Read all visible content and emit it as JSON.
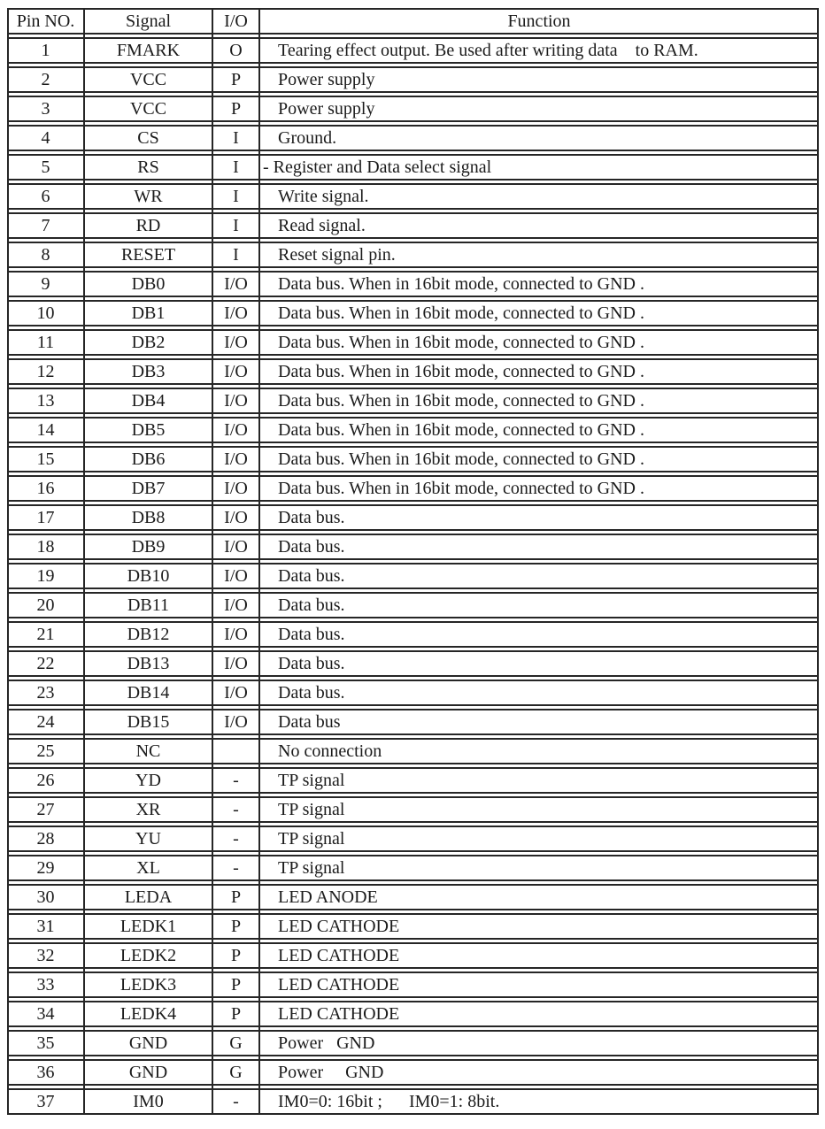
{
  "table": {
    "headers": [
      "Pin NO.",
      "Signal",
      "I/O",
      "Function"
    ],
    "rows": [
      {
        "pin": "1",
        "signal": "FMARK",
        "io": "O",
        "function": "Tearing effect output. Be used after writing data    to RAM."
      },
      {
        "pin": "2",
        "signal": "VCC",
        "io": "P",
        "function": "Power supply"
      },
      {
        "pin": "3",
        "signal": "VCC",
        "io": "P",
        "function": "Power supply"
      },
      {
        "pin": "4",
        "signal": "CS",
        "io": "I",
        "function": "Ground."
      },
      {
        "pin": "5",
        "signal": "RS",
        "io": "I",
        "function": "- Register and Data select signal",
        "flush": true
      },
      {
        "pin": "6",
        "signal": "WR",
        "io": "I",
        "function": "Write signal."
      },
      {
        "pin": "7",
        "signal": "RD",
        "io": "I",
        "function": "Read signal."
      },
      {
        "pin": "8",
        "signal": "RESET",
        "io": "I",
        "function": "Reset signal pin."
      },
      {
        "pin": "9",
        "signal": "DB0",
        "io": "I/O",
        "function": "Data bus. When in 16bit mode, connected to GND ."
      },
      {
        "pin": "10",
        "signal": "DB1",
        "io": "I/O",
        "function": "Data bus. When in 16bit mode, connected to GND ."
      },
      {
        "pin": "11",
        "signal": "DB2",
        "io": "I/O",
        "function": "Data bus. When in 16bit mode, connected to GND ."
      },
      {
        "pin": "12",
        "signal": "DB3",
        "io": "I/O",
        "function": "Data bus. When in 16bit mode, connected to GND ."
      },
      {
        "pin": "13",
        "signal": "DB4",
        "io": "I/O",
        "function": "Data bus. When in 16bit mode, connected to GND ."
      },
      {
        "pin": "14",
        "signal": "DB5",
        "io": "I/O",
        "function": "Data bus. When in 16bit mode, connected to GND ."
      },
      {
        "pin": "15",
        "signal": "DB6",
        "io": "I/O",
        "function": "Data bus. When in 16bit mode, connected to GND ."
      },
      {
        "pin": "16",
        "signal": "DB7",
        "io": "I/O",
        "function": "Data bus. When in 16bit mode, connected to GND ."
      },
      {
        "pin": "17",
        "signal": "DB8",
        "io": "I/O",
        "function": "Data bus."
      },
      {
        "pin": "18",
        "signal": "DB9",
        "io": "I/O",
        "function": "Data bus."
      },
      {
        "pin": "19",
        "signal": "DB10",
        "io": "I/O",
        "function": "Data bus."
      },
      {
        "pin": "20",
        "signal": "DB11",
        "io": "I/O",
        "function": "Data bus."
      },
      {
        "pin": "21",
        "signal": "DB12",
        "io": "I/O",
        "function": "Data bus."
      },
      {
        "pin": "22",
        "signal": "DB13",
        "io": "I/O",
        "function": "Data bus."
      },
      {
        "pin": "23",
        "signal": "DB14",
        "io": "I/O",
        "function": "Data bus."
      },
      {
        "pin": "24",
        "signal": "DB15",
        "io": "I/O",
        "function": "Data bus"
      },
      {
        "pin": "25",
        "signal": "NC",
        "io": "",
        "function": "No connection"
      },
      {
        "pin": "26",
        "signal": "YD",
        "io": "-",
        "function": "TP signal"
      },
      {
        "pin": "27",
        "signal": "XR",
        "io": "-",
        "function": "TP signal"
      },
      {
        "pin": "28",
        "signal": "YU",
        "io": "-",
        "function": "TP signal"
      },
      {
        "pin": "29",
        "signal": "XL",
        "io": "-",
        "function": "TP signal"
      },
      {
        "pin": "30",
        "signal": "LEDA",
        "io": "P",
        "function": "LED ANODE"
      },
      {
        "pin": "31",
        "signal": "LEDK1",
        "io": "P",
        "function": "LED CATHODE"
      },
      {
        "pin": "32",
        "signal": "LEDK2",
        "io": "P",
        "function": "LED CATHODE"
      },
      {
        "pin": "33",
        "signal": "LEDK3",
        "io": "P",
        "function": "LED CATHODE"
      },
      {
        "pin": "34",
        "signal": "LEDK4",
        "io": "P",
        "function": "LED CATHODE"
      },
      {
        "pin": "35",
        "signal": "GND",
        "io": "G",
        "function": "Power   GND"
      },
      {
        "pin": "36",
        "signal": "GND",
        "io": "G",
        "function": "Power     GND"
      },
      {
        "pin": "37",
        "signal": "IM0",
        "io": "-",
        "function": "IM0=0: 16bit ;      IM0=1: 8bit."
      }
    ]
  },
  "colors": {
    "border": "#262626",
    "text": "#1b1b1b",
    "background": "#ffffff"
  }
}
